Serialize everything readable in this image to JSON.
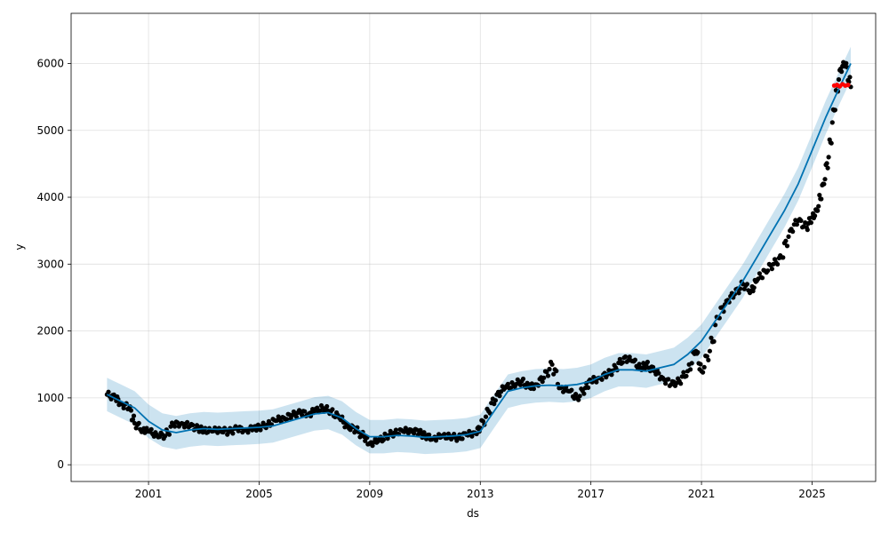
{
  "chart_data": {
    "type": "line",
    "title": "",
    "xlabel": "ds",
    "ylabel": "y",
    "grid": true,
    "xlim": [
      1998.2,
      2027.3
    ],
    "ylim": [
      -250,
      6750
    ],
    "x_ticks": [
      2001,
      2005,
      2009,
      2013,
      2017,
      2021,
      2025
    ],
    "y_ticks": [
      0,
      1000,
      2000,
      3000,
      4000,
      5000,
      6000
    ],
    "colors": {
      "observed": "#000000",
      "forecast_line": "#0072B2",
      "uncertainty_band": "#0072B2",
      "recent_points": "#ff0000"
    },
    "observed": {
      "x": [
        1999.5,
        1999.8,
        2000.0,
        2000.3,
        2000.5,
        2000.8,
        2001.0,
        2001.3,
        2001.6,
        2001.9,
        2002.2,
        2002.5,
        2002.8,
        2003.0,
        2003.3,
        2003.6,
        2003.9,
        2004.2,
        2004.5,
        2004.8,
        2005.0,
        2005.3,
        2005.6,
        2005.9,
        2006.2,
        2006.5,
        2006.8,
        2007.0,
        2007.3,
        2007.6,
        2007.9,
        2008.2,
        2008.5,
        2008.8,
        2009.0,
        2009.3,
        2009.6,
        2009.9,
        2010.2,
        2010.5,
        2010.8,
        2011.0,
        2011.3,
        2011.6,
        2011.9,
        2012.2,
        2012.5,
        2012.8,
        2013.0,
        2013.3,
        2013.6,
        2013.9,
        2014.2,
        2014.5,
        2014.8,
        2015.0,
        2015.3,
        2015.6,
        2015.9,
        2016.2,
        2016.5,
        2016.8,
        2017.0,
        2017.3,
        2017.6,
        2017.9,
        2018.2,
        2018.5,
        2018.8,
        2019.0,
        2019.3,
        2019.6,
        2019.9,
        2020.2,
        2020.5,
        2020.8,
        2021.0,
        2021.3,
        2021.6,
        2021.9,
        2022.2,
        2022.5,
        2022.8,
        2023.0,
        2023.3,
        2023.6,
        2023.9,
        2024.2,
        2024.5,
        2024.8,
        2025.0,
        2025.2,
        2025.4,
        2025.6,
        2025.8,
        2026.0,
        2026.2,
        2026.4
      ],
      "y": [
        1050,
        1000,
        920,
        850,
        620,
        520,
        500,
        450,
        430,
        600,
        620,
        580,
        540,
        520,
        500,
        530,
        490,
        540,
        520,
        540,
        560,
        600,
        660,
        700,
        740,
        780,
        760,
        800,
        850,
        800,
        700,
        580,
        520,
        420,
        320,
        350,
        430,
        480,
        500,
        520,
        480,
        430,
        400,
        420,
        430,
        400,
        450,
        480,
        550,
        800,
        1050,
        1150,
        1200,
        1250,
        1150,
        1200,
        1300,
        1500,
        1150,
        1100,
        1000,
        1150,
        1250,
        1300,
        1350,
        1450,
        1600,
        1550,
        1450,
        1500,
        1400,
        1300,
        1200,
        1250,
        1400,
        1700,
        1400,
        1700,
        2200,
        2450,
        2550,
        2700,
        2600,
        2750,
        2900,
        3000,
        3100,
        3500,
        3650,
        3550,
        3700,
        3800,
        4200,
        4600,
        5300,
        5900,
        6000,
        5650
      ]
    },
    "recent_points": {
      "x": [
        2025.8,
        2025.9,
        2026.0,
        2026.1,
        2026.2,
        2026.3
      ],
      "y": [
        5670,
        5680,
        5660,
        5690,
        5670,
        5680
      ]
    },
    "forecast": {
      "x": [
        1999.5,
        2000.0,
        2000.5,
        2001.0,
        2001.5,
        2002.0,
        2002.5,
        2003.0,
        2003.5,
        2004.0,
        2004.5,
        2005.0,
        2005.5,
        2006.0,
        2006.5,
        2007.0,
        2007.5,
        2008.0,
        2008.5,
        2009.0,
        2009.5,
        2010.0,
        2010.5,
        2011.0,
        2011.5,
        2012.0,
        2012.5,
        2013.0,
        2013.5,
        2014.0,
        2014.5,
        2015.0,
        2015.5,
        2016.0,
        2016.5,
        2017.0,
        2017.5,
        2018.0,
        2018.5,
        2019.0,
        2019.5,
        2020.0,
        2020.5,
        2021.0,
        2021.5,
        2022.0,
        2022.5,
        2023.0,
        2023.5,
        2024.0,
        2024.5,
        2025.0,
        2025.5,
        2026.0,
        2026.4
      ],
      "yhat": [
        1050,
        950,
        850,
        650,
        520,
        480,
        520,
        540,
        530,
        540,
        550,
        560,
        580,
        640,
        700,
        760,
        780,
        700,
        540,
        420,
        420,
        440,
        430,
        410,
        420,
        430,
        450,
        500,
        800,
        1100,
        1150,
        1180,
        1190,
        1180,
        1200,
        1250,
        1350,
        1420,
        1420,
        1400,
        1450,
        1500,
        1650,
        1850,
        2150,
        2450,
        2750,
        3100,
        3450,
        3800,
        4200,
        4700,
        5200,
        5650,
        6000
      ],
      "yhat_lower": [
        800,
        700,
        600,
        400,
        270,
        230,
        270,
        290,
        280,
        290,
        300,
        310,
        330,
        390,
        450,
        510,
        530,
        450,
        290,
        170,
        170,
        190,
        180,
        160,
        170,
        180,
        200,
        250,
        550,
        850,
        900,
        930,
        940,
        930,
        950,
        1000,
        1100,
        1170,
        1170,
        1150,
        1200,
        1250,
        1400,
        1600,
        1900,
        2200,
        2500,
        2850,
        3200,
        3550,
        3950,
        4450,
        4950,
        5400,
        5750
      ],
      "yhat_upper": [
        1300,
        1200,
        1100,
        900,
        770,
        730,
        770,
        790,
        780,
        790,
        800,
        810,
        830,
        890,
        950,
        1010,
        1030,
        950,
        790,
        670,
        670,
        690,
        680,
        660,
        670,
        680,
        700,
        750,
        1050,
        1350,
        1400,
        1430,
        1440,
        1430,
        1450,
        1500,
        1600,
        1670,
        1670,
        1650,
        1700,
        1750,
        1900,
        2100,
        2400,
        2700,
        3000,
        3350,
        3700,
        4050,
        4450,
        4950,
        5450,
        5900,
        6250
      ]
    }
  }
}
